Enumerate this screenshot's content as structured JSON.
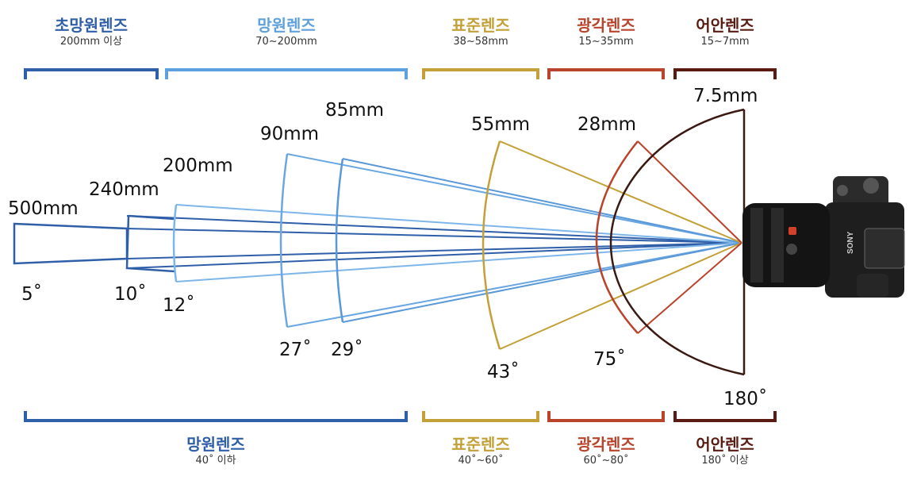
{
  "top_groups": [
    {
      "name": "초망원렌즈",
      "range": "200mm 이상",
      "color": "#2f5fa8"
    },
    {
      "name": "망원렌즈",
      "range": "70~200mm",
      "color": "#5fa1de"
    },
    {
      "name": "표준렌즈",
      "range": "38~58mm",
      "color": "#c3a038"
    },
    {
      "name": "광각렌즈",
      "range": "15~35mm",
      "color": "#b8442c"
    },
    {
      "name": "어안렌즈",
      "range": "15~7mm",
      "color": "#5a1c12"
    }
  ],
  "bottom_groups": [
    {
      "name": "망원렌즈",
      "range": "40˚ 이하",
      "color": "#2f5fa8"
    },
    {
      "name": "표준렌즈",
      "range": "40˚~60˚",
      "color": "#c3a038"
    },
    {
      "name": "광각렌즈",
      "range": "60˚~80˚",
      "color": "#b8442c"
    },
    {
      "name": "어안렌즈",
      "range": "180˚ 이상",
      "color": "#5a1c12"
    }
  ],
  "lenses": [
    {
      "focal": "500mm",
      "angle": "5˚",
      "color": "#2f5fa8"
    },
    {
      "focal": "240mm",
      "angle": "10˚",
      "color": "#2f5fa8"
    },
    {
      "focal": "200mm",
      "angle": "12˚",
      "color": "#5fa1de"
    },
    {
      "focal": "90mm",
      "angle": "27˚",
      "color": "#5fa1de"
    },
    {
      "focal": "85mm",
      "angle": "29˚",
      "color": "#5fa1de"
    },
    {
      "focal": "55mm",
      "angle": "43˚",
      "color": "#c3a038"
    },
    {
      "focal": "28mm",
      "angle": "75˚",
      "color": "#b8442c"
    },
    {
      "focal": "7.5mm",
      "angle": "180˚",
      "color": "#5a1c12"
    }
  ],
  "camera": {
    "brand": "SONY"
  }
}
